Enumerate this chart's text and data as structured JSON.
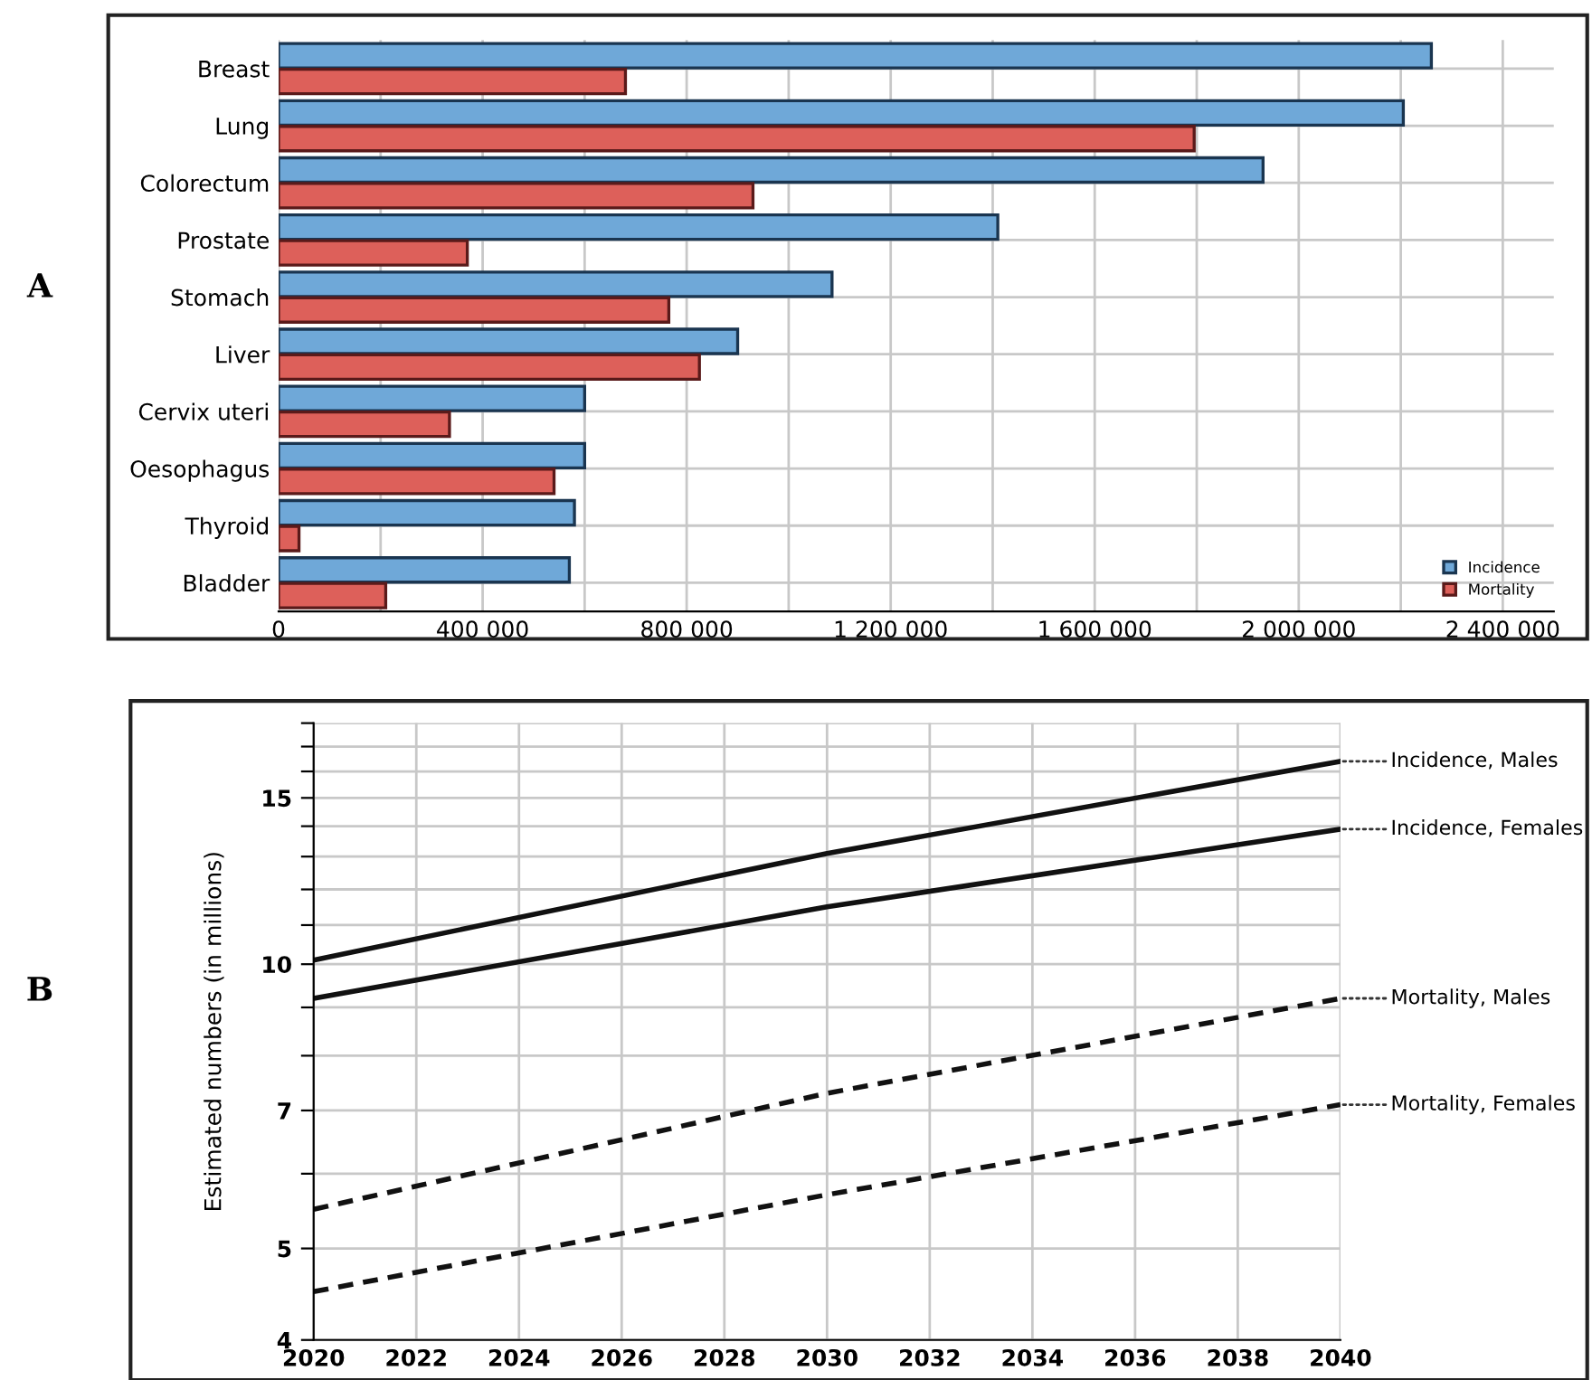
{
  "chart_data": [
    {
      "type": "bar",
      "orientation": "horizontal",
      "annotations": [
        "A"
      ],
      "categories": [
        "Breast",
        "Lung",
        "Colorectum",
        "Prostate",
        "Stomach",
        "Liver",
        "Cervix uteri",
        "Oesophagus",
        "Thyroid",
        "Bladder"
      ],
      "series": [
        {
          "name": "Incidence",
          "color": "#6fa8d8",
          "values": [
            2260000,
            2205000,
            1930000,
            1410000,
            1085000,
            900000,
            600000,
            600000,
            580000,
            570000
          ]
        },
        {
          "name": "Mortality",
          "color": "#dd605a",
          "values": [
            680000,
            1795000,
            930000,
            370000,
            765000,
            825000,
            335000,
            540000,
            40000,
            210000
          ]
        }
      ],
      "xlim": [
        0,
        2500000
      ],
      "xticks": [
        0,
        {
          "value": 200000,
          "label": null
        },
        {
          "value": 400000,
          "label": "400 000"
        },
        {
          "value": 600000,
          "label": null
        },
        {
          "value": 800000,
          "label": "800 000"
        },
        {
          "value": 1000000,
          "label": null
        },
        {
          "value": 1200000,
          "label": "1 200 000"
        },
        {
          "value": 1400000,
          "label": null
        },
        {
          "value": 1600000,
          "label": "1 600 000"
        },
        {
          "value": 1800000,
          "label": null
        },
        {
          "value": 2000000,
          "label": "2 000 000"
        },
        {
          "value": 2200000,
          "label": null
        },
        {
          "value": 2400000,
          "label": "2 400 000"
        }
      ],
      "grid": true,
      "legend": "bottom right"
    },
    {
      "type": "line",
      "annotations": [
        "B"
      ],
      "ylabel": "Estimated numbers (in millions)",
      "log": true,
      "x": [
        2020,
        2030,
        2040
      ],
      "series": [
        {
          "name": "Incidence, Males",
          "color": "#111111",
          "line_style": "solid",
          "values": [
            10.1,
            13.1,
            16.4
          ]
        },
        {
          "name": "Incidence, Females",
          "color": "#111111",
          "line_style": "solid",
          "values": [
            9.2,
            11.5,
            13.9
          ]
        },
        {
          "name": "Mortality, Males",
          "color": "#111111",
          "line_style": "dashed",
          "values": [
            5.5,
            7.3,
            9.2
          ]
        },
        {
          "name": "Mortality, Females",
          "color": "#111111",
          "line_style": "dashed",
          "values": [
            4.5,
            5.7,
            7.1
          ]
        }
      ],
      "xlim": [
        2020,
        2040
      ],
      "xticks": [
        2020,
        2022,
        2024,
        2026,
        2028,
        2030,
        2032,
        2034,
        2036,
        2038,
        2040
      ],
      "ylim": [
        4,
        18
      ],
      "yticks": [
        4,
        5,
        {
          "value": 6,
          "label": null
        },
        7,
        {
          "value": 8,
          "label": null
        },
        {
          "value": 9,
          "label": null
        },
        10,
        {
          "value": 11,
          "label": null
        },
        {
          "value": 12,
          "label": null
        },
        {
          "value": 13,
          "label": null
        },
        {
          "value": 14,
          "label": null
        },
        15,
        {
          "value": 16,
          "label": null
        },
        {
          "value": 17,
          "label": null
        },
        {
          "value": 18,
          "label": null
        }
      ],
      "grid": true,
      "legend": false
    }
  ]
}
